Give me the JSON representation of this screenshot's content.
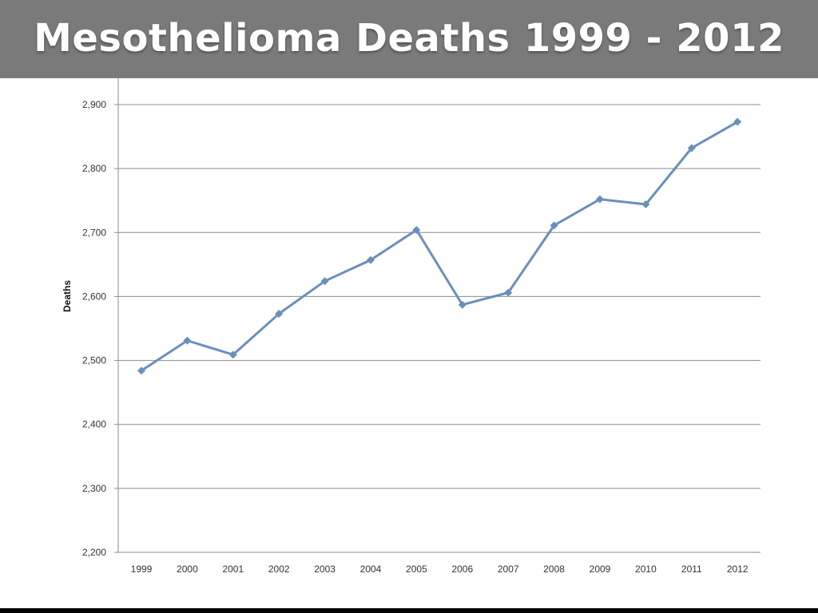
{
  "title": "Mesothelioma Deaths 1999 - 2012",
  "colors": {
    "title_bar": "#7a7a7a",
    "title_text": "#ffffff",
    "series_line": "#6a8fbc",
    "gridline": "#8c8c8c",
    "axis": "#8c8c8c",
    "bottom_rule": "#000000"
  },
  "chart_data": {
    "type": "line",
    "ylabel": "Deaths",
    "xlabel": "",
    "ylim": [
      2200,
      2900
    ],
    "grid": true,
    "categories": [
      "1999",
      "2000",
      "2001",
      "2002",
      "2003",
      "2004",
      "2005",
      "2006",
      "2007",
      "2008",
      "2009",
      "2010",
      "2011",
      "2012"
    ],
    "yticks": [
      {
        "value": 2200,
        "label": "2,200"
      },
      {
        "value": 2300,
        "label": "2,300"
      },
      {
        "value": 2400,
        "label": "2,400"
      },
      {
        "value": 2500,
        "label": "2,500"
      },
      {
        "value": 2600,
        "label": "2,600"
      },
      {
        "value": 2700,
        "label": "2,700"
      },
      {
        "value": 2800,
        "label": "2,800"
      },
      {
        "value": 2900,
        "label": "2,900"
      }
    ],
    "series": [
      {
        "values": [
          2484,
          2531,
          2509,
          2573,
          2624,
          2657,
          2704,
          2587,
          2606,
          2711,
          2752,
          2744,
          2832,
          2873
        ]
      }
    ]
  }
}
